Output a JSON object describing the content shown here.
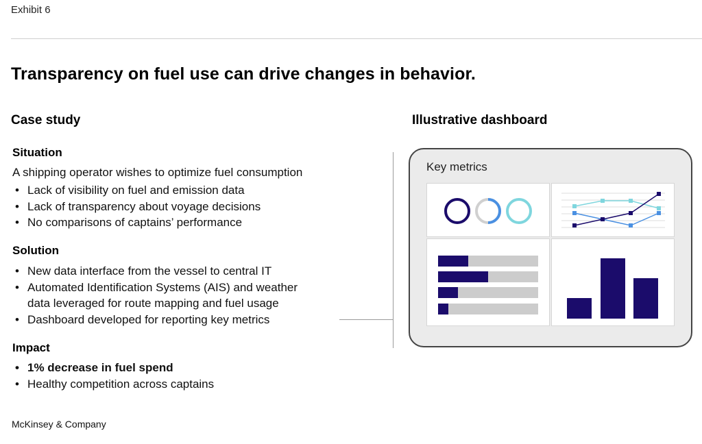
{
  "exhibit_label": "Exhibit 6",
  "title": "Transparency on fuel use can drive changes in behavior.",
  "left_heading": "Case study",
  "right_heading": "Illustrative dashboard",
  "situation": {
    "title": "Situation",
    "intro": "A shipping operator wishes to optimize fuel consumption",
    "bullets": [
      "Lack of visibility on fuel and emission data",
      "Lack of transparency about voyage decisions",
      "No comparisons of captains’ performance"
    ]
  },
  "solution": {
    "title": "Solution",
    "bullets": [
      "New data interface from the vessel to central IT",
      "Automated Identification Systems (AIS) and weather",
      "data leveraged for route mapping and fuel usage",
      "Dashboard developed for reporting key metrics"
    ]
  },
  "impact": {
    "title": "Impact",
    "bullets": [
      "1% decrease in fuel spend",
      "Healthy competition across captains"
    ]
  },
  "dashboard": {
    "title": "Key metrics"
  },
  "colors": {
    "navy": "#1b0c6b",
    "blue": "#4a90e2",
    "teal": "#7fd6de",
    "light_gray": "#cccccc"
  },
  "footer": "McKinsey & Company"
}
